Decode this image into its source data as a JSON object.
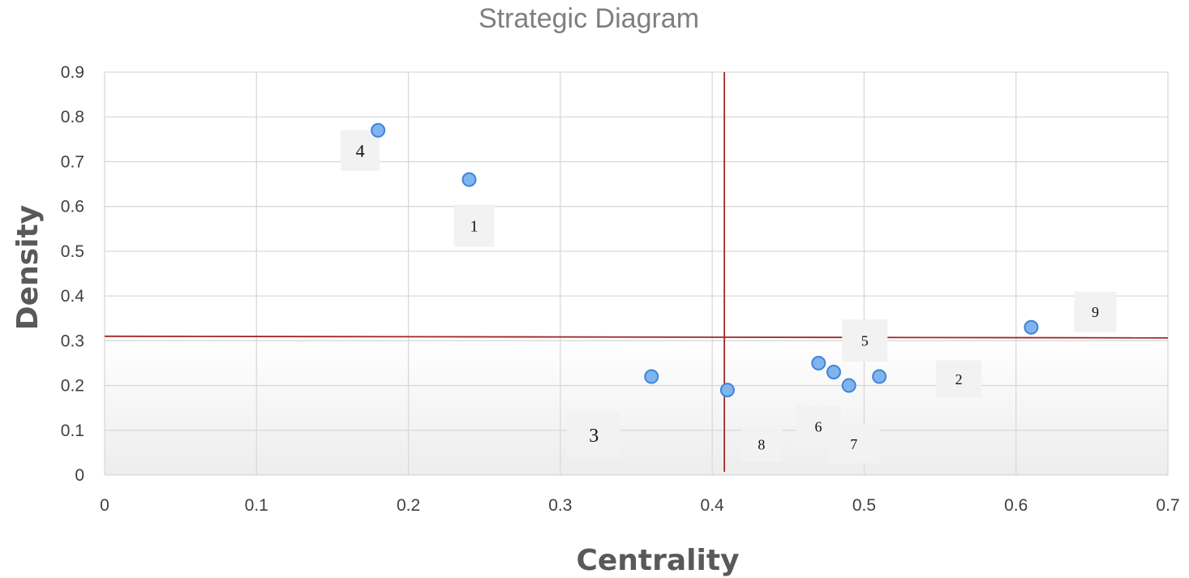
{
  "chart_data": {
    "type": "scatter",
    "title": "Strategic Diagram",
    "xlabel": "Centrality",
    "ylabel": "Density",
    "xlim": [
      0,
      0.7
    ],
    "ylim": [
      0,
      0.9
    ],
    "x_ticks": [
      "0",
      "0.1",
      "0.2",
      "0.3",
      "0.4",
      "0.5",
      "0.6",
      "0.7"
    ],
    "y_ticks": [
      "0",
      "0.1",
      "0.2",
      "0.3",
      "0.4",
      "0.5",
      "0.6",
      "0.7",
      "0.8",
      "0.9"
    ],
    "grid": true,
    "points": [
      {
        "label": "4",
        "x": 0.18,
        "y": 0.77
      },
      {
        "label": "1",
        "x": 0.24,
        "y": 0.66
      },
      {
        "label": "9",
        "x": 0.61,
        "y": 0.33
      },
      {
        "label": "3",
        "x": 0.36,
        "y": 0.22
      },
      {
        "label": "8",
        "x": 0.41,
        "y": 0.19
      },
      {
        "label": "5",
        "x": 0.47,
        "y": 0.25
      },
      {
        "label": "6",
        "x": 0.48,
        "y": 0.23
      },
      {
        "label": "7",
        "x": 0.49,
        "y": 0.2
      },
      {
        "label": "2",
        "x": 0.51,
        "y": 0.22
      }
    ],
    "reference_lines": {
      "vertical_x": 0.408,
      "horizontal_y": 0.31
    },
    "colors": {
      "point_fill": "#7fb4ee",
      "point_stroke": "#3d85d8",
      "reference_line": "#a02828"
    }
  }
}
